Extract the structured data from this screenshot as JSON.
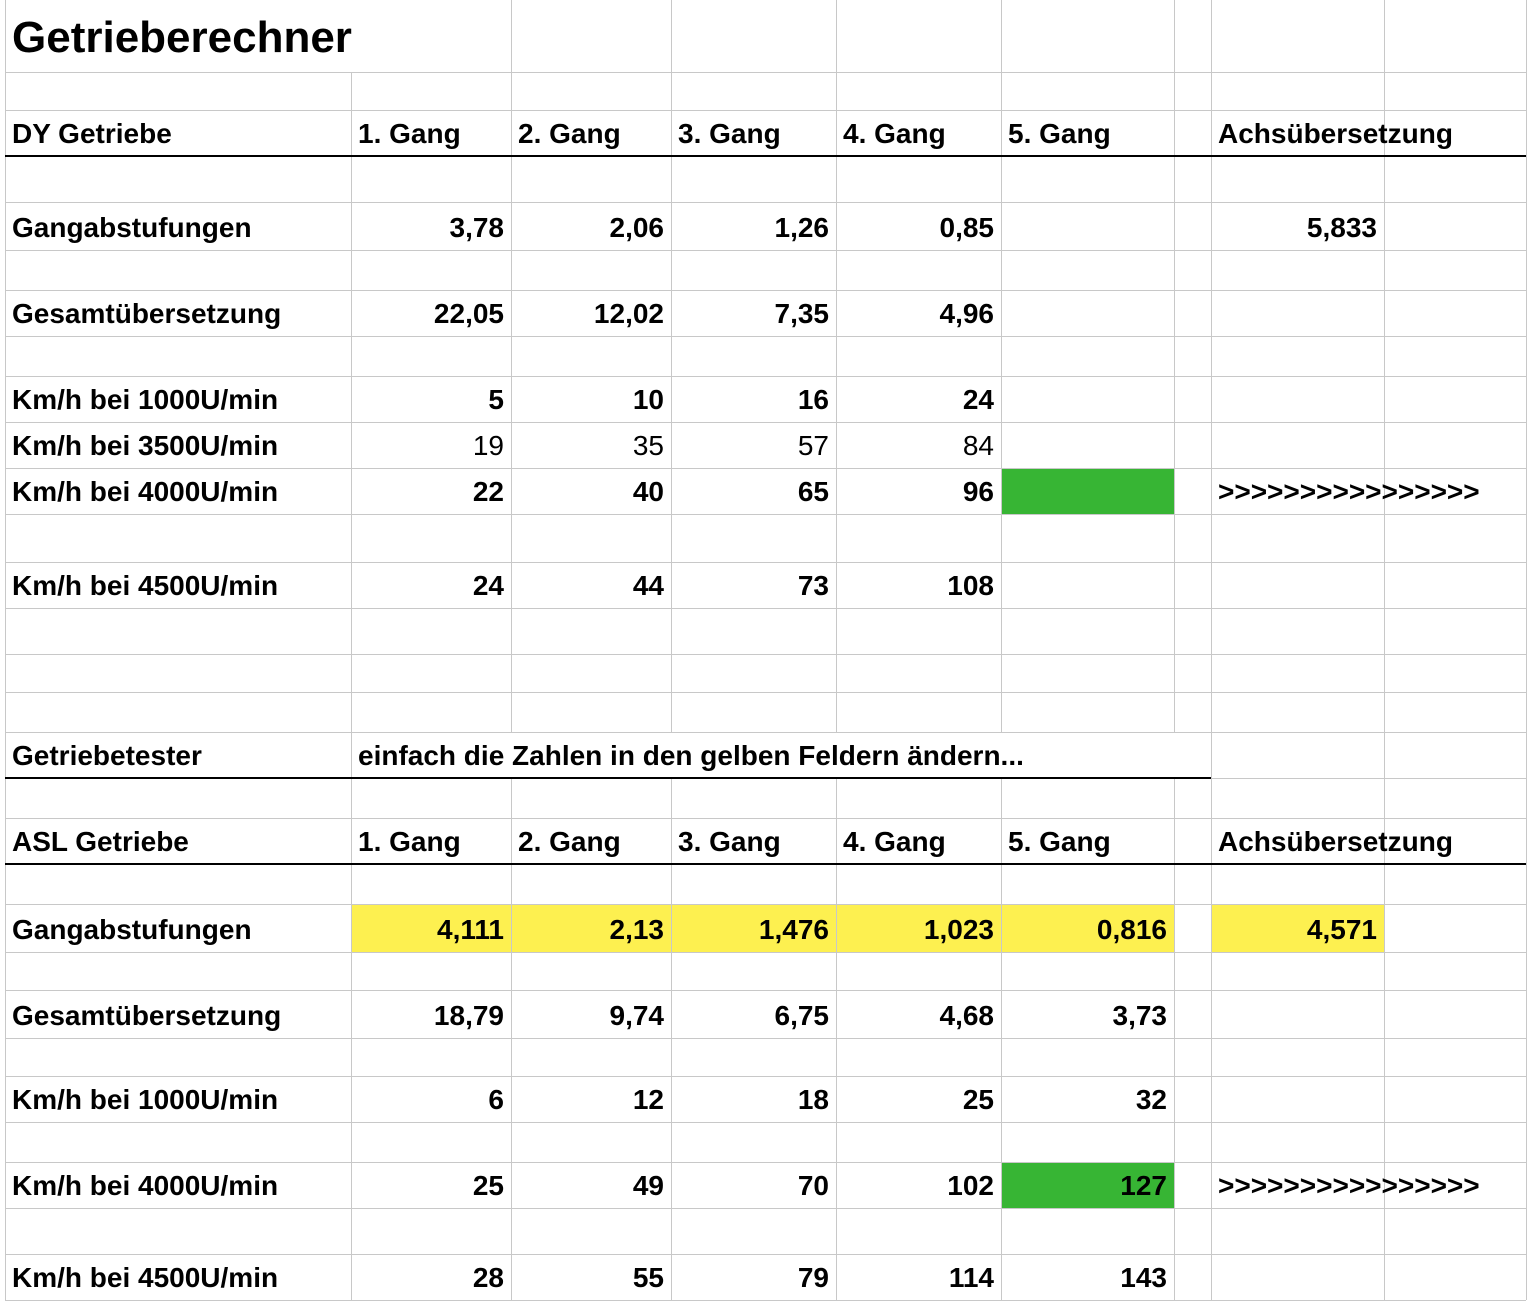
{
  "title": "Getrieberechner",
  "dy": {
    "header": [
      "DY Getriebe",
      "1. Gang",
      "2. Gang",
      "3. Gang",
      "4. Gang",
      "5. Gang",
      "Achsübersetzung"
    ],
    "rows": [
      {
        "label": "Gangabstufungen",
        "values": [
          "3,78",
          "2,06",
          "1,26",
          "0,85",
          ""
        ],
        "axle": "5,833"
      },
      {
        "label": "Gesamtübersetzung",
        "values": [
          "22,05",
          "12,02",
          "7,35",
          "4,96",
          ""
        ]
      },
      {
        "label": "Km/h bei 1000U/min",
        "values": [
          "5",
          "10",
          "16",
          "24",
          ""
        ]
      },
      {
        "label": "Km/h bei 3500U/min",
        "values": [
          "19",
          "35",
          "57",
          "84",
          ""
        ]
      },
      {
        "label": "Km/h bei 4000U/min",
        "values": [
          "22",
          "40",
          "65",
          "96",
          ""
        ],
        "note": ">>>>>>>>>>>>>>>>"
      },
      {
        "label": "Km/h bei 4500U/min",
        "values": [
          "24",
          "44",
          "73",
          "108",
          ""
        ]
      }
    ]
  },
  "tester": {
    "label": "Getriebetester",
    "note": "einfach die Zahlen in den gelben Feldern ändern..."
  },
  "asl": {
    "header": [
      "ASL Getriebe",
      "1. Gang",
      "2. Gang",
      "3. Gang",
      "4. Gang",
      "5. Gang",
      "Achsübersetzung"
    ],
    "rows": [
      {
        "label": "Gangabstufungen",
        "values": [
          "4,111",
          "2,13",
          "1,476",
          "1,023",
          "0,816"
        ],
        "axle": "4,571"
      },
      {
        "label": "Gesamtübersetzung",
        "values": [
          "18,79",
          "9,74",
          "6,75",
          "4,68",
          "3,73"
        ]
      },
      {
        "label": "Km/h bei 1000U/min",
        "values": [
          "6",
          "12",
          "18",
          "25",
          "32"
        ]
      },
      {
        "label": "Km/h bei 4000U/min",
        "values": [
          "25",
          "49",
          "70",
          "102",
          "127"
        ],
        "note": ">>>>>>>>>>>>>>>>"
      },
      {
        "label": "Km/h bei 4500U/min",
        "values": [
          "28",
          "55",
          "79",
          "114",
          "143"
        ]
      }
    ]
  },
  "colors": {
    "input_yellow": "#fdf050",
    "highlight_green": "#37b534",
    "gridline": "#c8c8c8"
  }
}
